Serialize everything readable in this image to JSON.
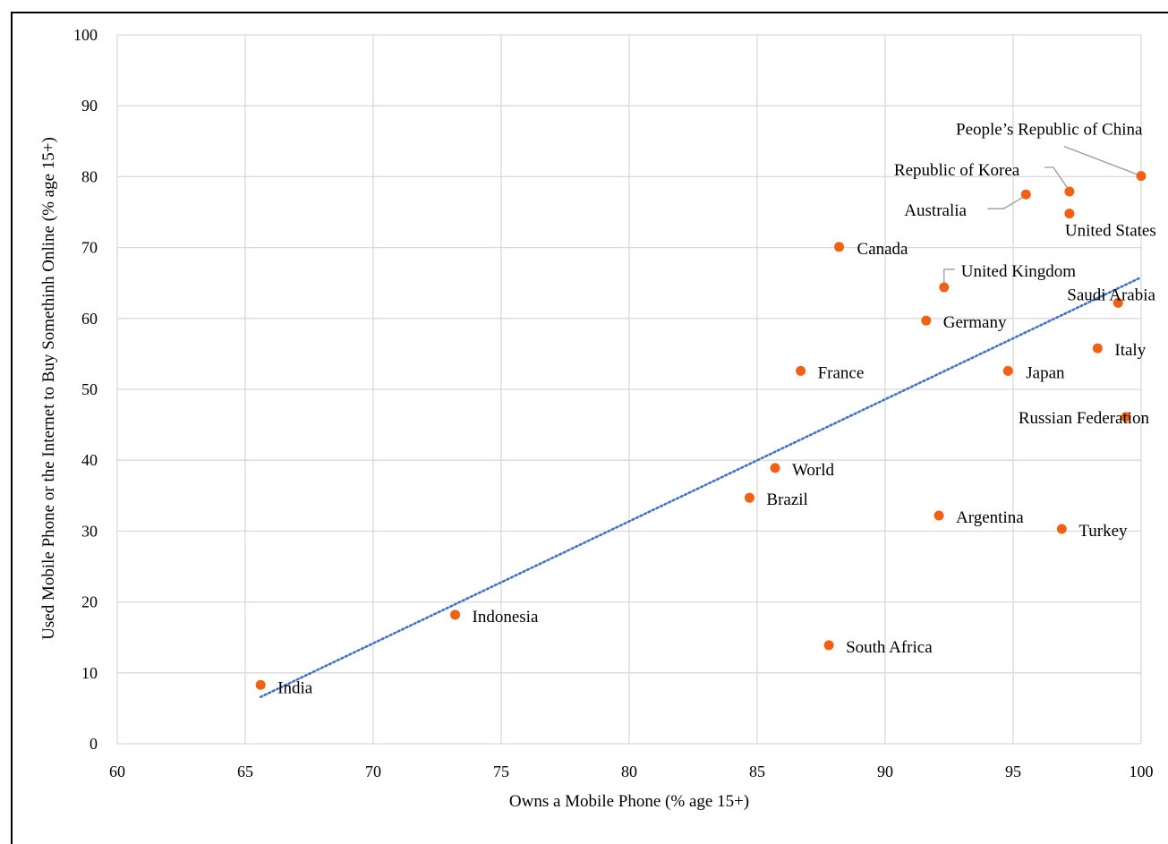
{
  "chart_data": {
    "type": "scatter",
    "title": "",
    "xlabel": "Owns a Mobile Phone (% age 15+)",
    "ylabel": "Used Mobile Phone or the Internet to Buy Somethinh Online (% age 15+)",
    "xlim": [
      60,
      100
    ],
    "ylim": [
      0,
      100
    ],
    "x_ticks": [
      60,
      65,
      70,
      75,
      80,
      85,
      90,
      95,
      100
    ],
    "y_ticks": [
      0,
      10,
      20,
      30,
      40,
      50,
      60,
      70,
      80,
      90,
      100
    ],
    "grid": true,
    "marker_color": "#f26113",
    "trendline": {
      "type": "linear",
      "style": "dotted",
      "color": "#4472c4",
      "x_start": 65.6,
      "y_start": 6.6,
      "x_end": 100,
      "y_end": 65.8
    },
    "points": [
      {
        "label": "India",
        "x": 65.6,
        "y": 8.3
      },
      {
        "label": "Indonesia",
        "x": 73.2,
        "y": 18.2
      },
      {
        "label": "Brazil",
        "x": 84.7,
        "y": 34.7
      },
      {
        "label": "World",
        "x": 85.7,
        "y": 38.9
      },
      {
        "label": "France",
        "x": 86.7,
        "y": 52.6
      },
      {
        "label": "South Africa",
        "x": 87.8,
        "y": 13.9
      },
      {
        "label": "Canada",
        "x": 88.2,
        "y": 70.1
      },
      {
        "label": "Germany",
        "x": 91.6,
        "y": 59.7
      },
      {
        "label": "Argentina",
        "x": 92.1,
        "y": 32.2
      },
      {
        "label": "United Kingdom",
        "x": 92.3,
        "y": 64.4
      },
      {
        "label": "Japan",
        "x": 94.8,
        "y": 52.6
      },
      {
        "label": "Australia",
        "x": 95.5,
        "y": 77.5
      },
      {
        "label": "Turkey",
        "x": 96.9,
        "y": 30.3
      },
      {
        "label": "Republic of Korea",
        "x": 97.2,
        "y": 77.9
      },
      {
        "label": "United States",
        "x": 97.2,
        "y": 74.8
      },
      {
        "label": "Italy",
        "x": 98.3,
        "y": 55.8
      },
      {
        "label": "Saudi Arabia",
        "x": 99.1,
        "y": 62.2
      },
      {
        "label": "Russian Federation",
        "x": 99.4,
        "y": 46.1
      },
      {
        "label": "People’s Republic of China",
        "x": 100,
        "y": 80.1
      }
    ]
  }
}
